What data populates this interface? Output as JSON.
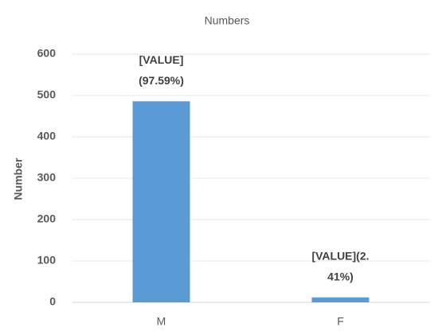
{
  "chart_data": {
    "type": "bar",
    "title": "Numbers",
    "y_label": "Number",
    "categories": [
      "M",
      "F"
    ],
    "values": [
      486,
      12
    ],
    "color": "#5b9bd5",
    "annotations": [
      [
        "[VALUE]",
        "(97.59%)"
      ],
      [
        "[VALUE](2.",
        "41%)"
      ]
    ],
    "ylim": [
      0,
      600
    ],
    "yticks": [
      0,
      100,
      200,
      300,
      400,
      500,
      600
    ],
    "grid": true
  }
}
